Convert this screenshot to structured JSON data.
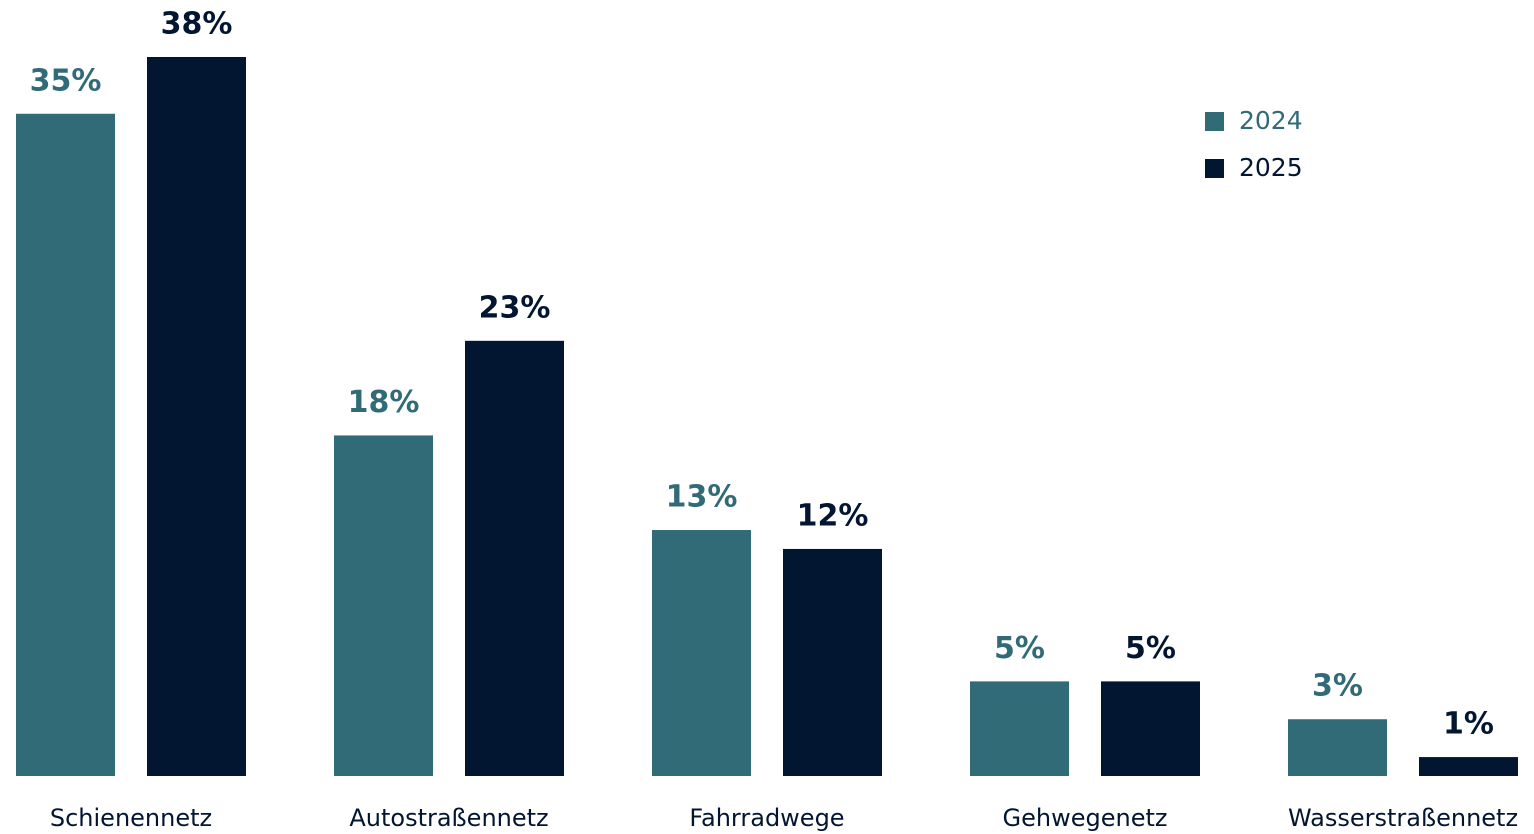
{
  "chart_data": {
    "type": "bar",
    "categories": [
      "Schienennetz",
      "Autostraßennetz",
      "Fahrradwege",
      "Gehwegenetz",
      "Wasserstraßennetz"
    ],
    "series": [
      {
        "name": "2024",
        "color": "#316b78",
        "values": [
          35,
          18,
          13,
          5,
          3
        ],
        "value_labels": [
          "35%",
          "18%",
          "13%",
          "5%",
          "3%"
        ]
      },
      {
        "name": "2025",
        "color": "#021631",
        "values": [
          38,
          23,
          12,
          5,
          1
        ],
        "value_labels": [
          "38%",
          "23%",
          "12%",
          "5%",
          "1%"
        ]
      }
    ],
    "legend": "upper right",
    "grid": false
  }
}
